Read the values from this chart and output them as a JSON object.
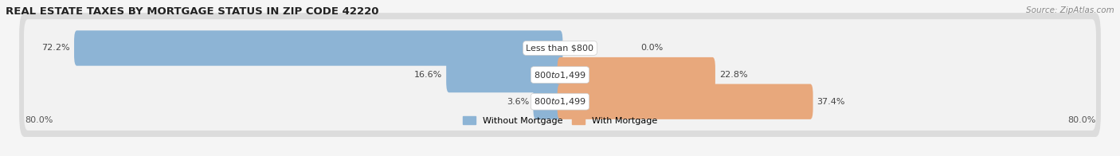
{
  "title": "REAL ESTATE TAXES BY MORTGAGE STATUS IN ZIP CODE 42220",
  "source": "Source: ZipAtlas.com",
  "rows": [
    {
      "without_val": 72.2,
      "with_val": 0.0,
      "label": "Less than $800",
      "without_label": "72.2%",
      "with_label": "0.0%"
    },
    {
      "without_val": 16.6,
      "with_val": 22.8,
      "label": "$800 to $1,499",
      "without_label": "16.6%",
      "with_label": "22.8%"
    },
    {
      "without_val": 3.6,
      "with_val": 37.4,
      "label": "$800 to $1,499",
      "without_label": "3.6%",
      "with_label": "37.4%"
    }
  ],
  "xlim_left": -80.0,
  "xlim_right": 80.0,
  "x_left_label": "80.0%",
  "x_right_label": "80.0%",
  "without_color": "#8db4d5",
  "with_color": "#e8a87c",
  "row_outer_color": "#dcdcdc",
  "row_inner_color": "#f2f2f2",
  "legend_without": "Without Mortgage",
  "legend_with": "With Mortgage",
  "bar_height": 0.52,
  "label_fontsize": 8.0,
  "title_fontsize": 9.5,
  "source_fontsize": 7.5,
  "fig_bg": "#f5f5f5"
}
